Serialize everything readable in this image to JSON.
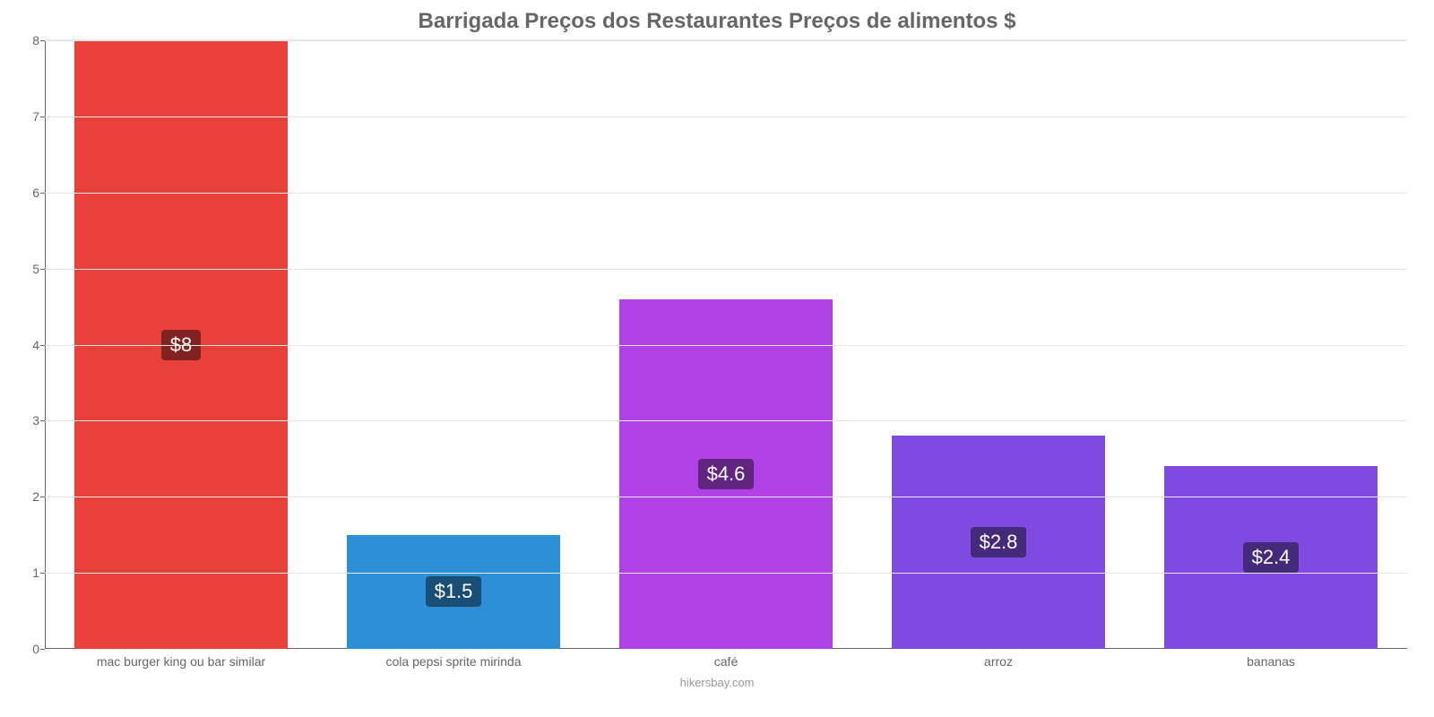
{
  "chart": {
    "type": "bar",
    "title": "Barrigada Preços dos Restaurantes Preços de alimentos $",
    "title_fontsize": 24,
    "title_color": "#666666",
    "background_color": "#ffffff",
    "grid_color": "#e6e6e6",
    "axis_color": "#666666",
    "tick_color": "#666666",
    "tick_fontsize": 14,
    "ylim": [
      0,
      8
    ],
    "ytick_step": 1,
    "bar_width_ratio": 0.78,
    "label_fontsize": 22,
    "label_badge_darken": 0.45,
    "label_text_color": "#ffffff",
    "source": "hikersbay.com",
    "source_color": "#999999",
    "source_fontsize": 13,
    "categories": [
      "mac burger king ou bar similar",
      "cola pepsi sprite mirinda",
      "café",
      "arroz",
      "bananas"
    ],
    "values": [
      8,
      1.5,
      4.6,
      2.8,
      2.4
    ],
    "value_labels": [
      "$8",
      "$1.5",
      "$4.6",
      "$2.8",
      "$2.4"
    ],
    "bar_colors": [
      "#e8403a",
      "#2d8fd6",
      "#b041e6",
      "#7e4ae0",
      "#7e4ae0"
    ]
  }
}
